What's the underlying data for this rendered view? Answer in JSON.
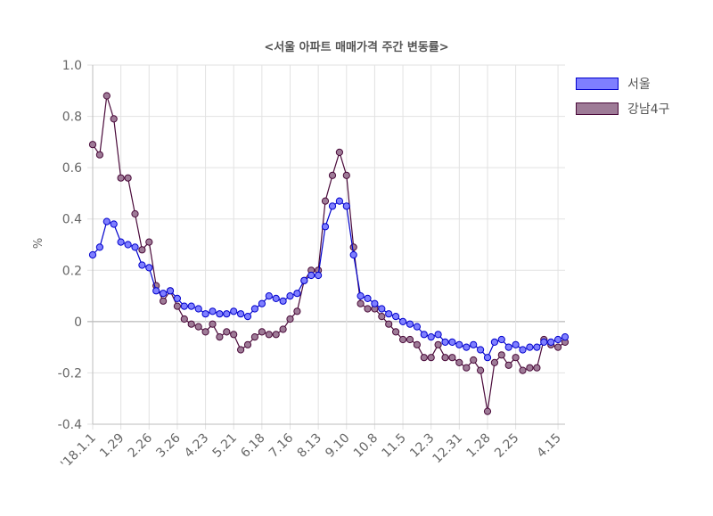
{
  "chart_data": {
    "type": "line",
    "title": "<서울 아파트 매매가격 주간 변동률>",
    "ylabel": "%",
    "xlabel": "",
    "ylim": [
      -0.4,
      1.0
    ],
    "yticks": [
      "1.0",
      "0.8",
      "0.6",
      "0.4",
      "0.2",
      "0",
      "-0.2",
      "-0.4"
    ],
    "legend_position": "top-right",
    "grid": true,
    "x_tick_labels": [
      "'18.1.1",
      "1.29",
      "2.26",
      "3.26",
      "4.23",
      "5.21",
      "6.18",
      "7.16",
      "8.13",
      "9.10",
      "10.8",
      "11.5",
      "12.3",
      "12.31",
      "1.28",
      "2.25",
      "4.15"
    ],
    "x_tick_indices": [
      0,
      4,
      8,
      12,
      16,
      20,
      24,
      28,
      32,
      36,
      40,
      44,
      48,
      52,
      56,
      60,
      66
    ],
    "series": [
      {
        "name": "서울",
        "color": "#0000cc",
        "fill": "#7f7fff",
        "values": [
          0.26,
          0.29,
          0.39,
          0.38,
          0.31,
          0.3,
          0.29,
          0.22,
          0.21,
          0.12,
          0.11,
          0.12,
          0.09,
          0.06,
          0.06,
          0.05,
          0.03,
          0.04,
          0.03,
          0.03,
          0.04,
          0.03,
          0.02,
          0.05,
          0.07,
          0.1,
          0.09,
          0.08,
          0.1,
          0.11,
          0.16,
          0.18,
          0.18,
          0.37,
          0.45,
          0.47,
          0.45,
          0.26,
          0.1,
          0.09,
          0.07,
          0.05,
          0.03,
          0.02,
          0.0,
          -0.01,
          -0.02,
          -0.05,
          -0.06,
          -0.05,
          -0.08,
          -0.08,
          -0.09,
          -0.1,
          -0.09,
          -0.11,
          -0.14,
          -0.08,
          -0.07,
          -0.1,
          -0.09,
          -0.11,
          -0.1,
          -0.1,
          -0.08,
          -0.08,
          -0.07,
          -0.06
        ]
      },
      {
        "name": "강남4구",
        "color": "#4a0a3a",
        "fill": "#9e7b97",
        "values": [
          0.69,
          0.65,
          0.88,
          0.79,
          0.56,
          0.56,
          0.42,
          0.28,
          0.31,
          0.14,
          0.08,
          0.12,
          0.06,
          0.01,
          -0.01,
          -0.02,
          -0.04,
          -0.01,
          -0.06,
          -0.04,
          -0.05,
          -0.11,
          -0.09,
          -0.06,
          -0.04,
          -0.05,
          -0.05,
          -0.03,
          0.01,
          0.04,
          0.16,
          0.2,
          0.2,
          0.47,
          0.57,
          0.66,
          0.57,
          0.29,
          0.07,
          0.05,
          0.05,
          0.02,
          -0.01,
          -0.04,
          -0.07,
          -0.07,
          -0.09,
          -0.14,
          -0.14,
          -0.09,
          -0.14,
          -0.14,
          -0.16,
          -0.18,
          -0.15,
          -0.19,
          -0.35,
          -0.16,
          -0.13,
          -0.17,
          -0.14,
          -0.19,
          -0.18,
          -0.18,
          -0.07,
          -0.09,
          -0.1,
          -0.08
        ]
      }
    ]
  }
}
